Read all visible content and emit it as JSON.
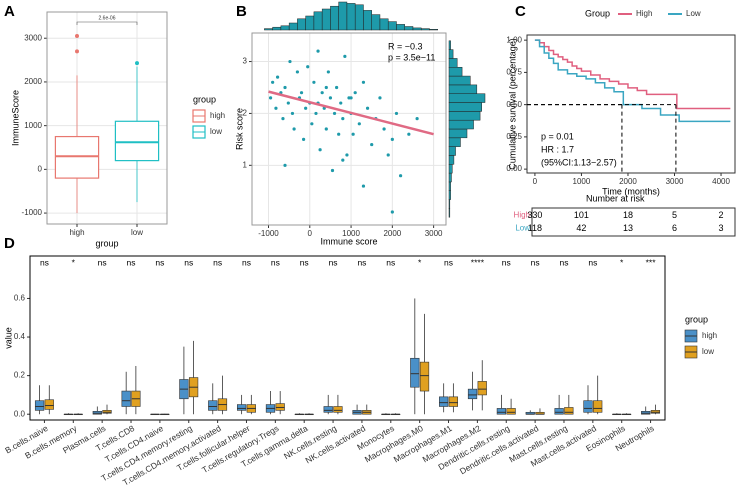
{
  "chart_data": [
    {
      "type": "box",
      "label": "A",
      "ylabel": "ImmuneScore",
      "xlabel": "group",
      "legend_title": "group",
      "filled": false,
      "grid": true,
      "annotation": "2.6e-06",
      "categories": [
        "high",
        "low"
      ],
      "ylim": [
        -1250,
        3600
      ],
      "yticks": [
        -1000,
        0,
        1000,
        2000,
        3000
      ],
      "series": [
        {
          "name": "high",
          "color": "#e8776f",
          "values": [
            [
              -1000,
              -200,
              300,
              750,
              2150
            ],
            null
          ],
          "outliers": [
            [
              2700,
              3050
            ],
            []
          ]
        },
        {
          "name": "low",
          "color": "#1fbfc4",
          "values": [
            null,
            [
              -750,
              200,
              620,
              1100,
              2350
            ]
          ],
          "outliers": [
            [],
            [
              2430
            ]
          ]
        }
      ]
    },
    {
      "type": "scatter",
      "label": "B",
      "xlabel": "Immune score",
      "ylabel": "Risk score",
      "color": "#1e9aaa",
      "grid": true,
      "annotations": [
        "R = −0.3",
        "p = 3.5e−11"
      ],
      "xlim": [
        -1400,
        3300
      ],
      "xticks": [
        -1000,
        0,
        1000,
        2000,
        3000
      ],
      "ylim": [
        -0.15,
        3.55
      ],
      "yticks": [
        1,
        2,
        3
      ],
      "x": [
        -950,
        -900,
        -820,
        -780,
        -700,
        -650,
        -600,
        -520,
        -480,
        -420,
        -380,
        -300,
        -250,
        -200,
        -150,
        -100,
        -50,
        0,
        50,
        100,
        150,
        200,
        250,
        300,
        350,
        400,
        450,
        500,
        550,
        600,
        650,
        700,
        750,
        800,
        850,
        900,
        950,
        1000,
        1050,
        1100,
        1200,
        1300,
        1400,
        1500,
        1600,
        1700,
        1800,
        1900,
        2000,
        2100,
        2200,
        2400,
        2600,
        -600,
        200,
        400,
        800,
        1000,
        2000,
        1300
      ],
      "y": [
        2.3,
        2.6,
        2.1,
        2.7,
        2.4,
        1.9,
        2.5,
        2.2,
        3.0,
        2.0,
        1.7,
        2.8,
        2.3,
        2.4,
        1.5,
        2.1,
        2.9,
        2.2,
        1.8,
        2.6,
        2.0,
        3.2,
        1.3,
        2.4,
        2.1,
        1.7,
        2.8,
        2.3,
        0.9,
        2.0,
        2.5,
        1.6,
        2.2,
        1.9,
        3.1,
        1.2,
        2.3,
        2.0,
        1.6,
        2.4,
        1.8,
        0.6,
        2.1,
        1.4,
        1.9,
        2.3,
        1.7,
        1.2,
        0.1,
        2.0,
        0.8,
        1.6,
        1.9,
        1.0,
        2.2,
        2.5,
        1.1,
        2.3,
        1.5,
        2.6
      ],
      "line": {
        "color": "#e06a84",
        "x": [
          -1000,
          3000
        ],
        "y": [
          2.42,
          1.6
        ]
      },
      "x_hist": {
        "bins": [
          -1100,
          -900,
          -700,
          -500,
          -300,
          -100,
          100,
          300,
          500,
          700,
          900,
          1100,
          1300,
          1500,
          1700,
          1900,
          2100,
          2300,
          2500,
          2700,
          2900,
          3100
        ],
        "counts": [
          2,
          4,
          6,
          10,
          16,
          20,
          26,
          30,
          34,
          40,
          38,
          36,
          28,
          22,
          16,
          12,
          8,
          5,
          3,
          2,
          1
        ]
      },
      "y_hist": {
        "bins": [
          0,
          0.17,
          0.34,
          0.51,
          0.68,
          0.85,
          1.02,
          1.19,
          1.36,
          1.53,
          1.7,
          1.87,
          2.04,
          2.21,
          2.38,
          2.55,
          2.72,
          2.89,
          3.06,
          3.23,
          3.4
        ],
        "counts": [
          1,
          1,
          2,
          2,
          3,
          4,
          6,
          8,
          14,
          22,
          30,
          38,
          40,
          44,
          34,
          26,
          16,
          10,
          5,
          2
        ]
      }
    },
    {
      "type": "line",
      "label": "C",
      "xlabel": "Time (months)",
      "ylabel": "Cumulative survival (percentage)",
      "legend_title": "Group",
      "step": true,
      "annotations": [
        "p = 0.01",
        "HR : 1.7",
        "(95%CI:1.13−2.57)"
      ],
      "xlim": [
        -170,
        4300
      ],
      "xticks": [
        0,
        1000,
        2000,
        3000,
        4000
      ],
      "ylim": [
        -0.03,
        1.04
      ],
      "yticks": [
        {
          "value": 0,
          "label": "0.00"
        },
        0.25,
        {
          "value": 0.5,
          "label": "0.50"
        },
        0.75,
        {
          "value": 1,
          "label": "1.00"
        }
      ],
      "series": [
        {
          "name": "High",
          "color": "#e05f7f",
          "x": [
            0,
            100,
            200,
            300,
            400,
            500,
            600,
            700,
            800,
            900,
            1000,
            1200,
            1400,
            1600,
            1800,
            2000,
            2200,
            2400,
            3050,
            4200
          ],
          "y": [
            1,
            0.98,
            0.95,
            0.92,
            0.89,
            0.87,
            0.85,
            0.83,
            0.8,
            0.78,
            0.76,
            0.73,
            0.7,
            0.68,
            0.66,
            0.63,
            0.61,
            0.58,
            0.47,
            0.47
          ]
        },
        {
          "name": "Low",
          "color": "#3aa6c2",
          "x": [
            0,
            100,
            200,
            300,
            400,
            500,
            700,
            900,
            1100,
            1300,
            1500,
            1700,
            1900,
            2300,
            2700,
            3100,
            4200
          ],
          "y": [
            1,
            0.95,
            0.9,
            0.86,
            0.82,
            0.77,
            0.74,
            0.72,
            0.7,
            0.67,
            0.63,
            0.6,
            0.5,
            0.47,
            0.42,
            0.37,
            0.37
          ]
        }
      ],
      "median_lines": {
        "y": 0.5,
        "x": [
          1870,
          3030
        ]
      },
      "risk_table": {
        "title": "Number at risk",
        "rows": [
          {
            "name": "High",
            "values": [
              330,
              101,
              18,
              5,
              2
            ]
          },
          {
            "name": "Low",
            "values": [
              118,
              42,
              13,
              6,
              3
            ]
          }
        ]
      }
    },
    {
      "type": "box",
      "label": "D",
      "ylabel": "value",
      "legend_title": "group",
      "filled": true,
      "grid": false,
      "categories": [
        "B.cells.naive",
        "B.cells.memory",
        "Plasma.cells",
        "T.cells.CD8",
        "T.cells.CD4.naive",
        "T.cells.CD4.memory.resting",
        "T.cells.CD4.memory.activated",
        "T.cells.follicular.helper",
        "T.cells.regulatory.Tregs",
        "T.cells.gamma.delta",
        "NK.cells.resting",
        "NK.cells.activated",
        "Monocytes",
        "Macrophages.M0",
        "Macrophages.M1",
        "Macrophages.M2",
        "Dendritic.cells.resting",
        "Dendritic.cells.activated",
        "Mast.cells.resting",
        "Mast.cells.activated",
        "Eosinophils",
        "Neutrophils"
      ],
      "annotations": [
        "ns",
        "*",
        "ns",
        "ns",
        "ns",
        "ns",
        "ns",
        "ns",
        "ns",
        "ns",
        "ns",
        "ns",
        "ns",
        "*",
        "ns",
        "****",
        "ns",
        "ns",
        "ns",
        "ns",
        "*",
        "***"
      ],
      "ylim": [
        -0.03,
        0.82
      ],
      "yticks": [
        {
          "value": 0,
          "label": "0.0"
        },
        0.2,
        0.4,
        0.6
      ],
      "series": [
        {
          "name": "high",
          "color": "#4a90c8",
          "values": [
            [
              0,
              0.02,
              0.04,
              0.07,
              0.15
            ],
            [
              0,
              0,
              0,
              0,
              0.005
            ],
            [
              0,
              0,
              0.005,
              0.015,
              0.04
            ],
            [
              0,
              0.04,
              0.07,
              0.12,
              0.22
            ],
            [
              0,
              0,
              0,
              0,
              0.002
            ],
            [
              0,
              0.08,
              0.13,
              0.18,
              0.35
            ],
            [
              0,
              0.02,
              0.04,
              0.07,
              0.16
            ],
            [
              0,
              0.02,
              0.03,
              0.05,
              0.1
            ],
            [
              0,
              0.01,
              0.03,
              0.05,
              0.12
            ],
            [
              0,
              0,
              0,
              0,
              0.005
            ],
            [
              0,
              0.01,
              0.02,
              0.04,
              0.1
            ],
            [
              0,
              0,
              0.01,
              0.02,
              0.05
            ],
            [
              0,
              0,
              0,
              0,
              0.005
            ],
            [
              0,
              0.14,
              0.21,
              0.29,
              0.6
            ],
            [
              0.01,
              0.04,
              0.06,
              0.09,
              0.16
            ],
            [
              0.02,
              0.08,
              0.1,
              0.13,
              0.22
            ],
            [
              0,
              0,
              0.01,
              0.03,
              0.1
            ],
            [
              0,
              0,
              0,
              0.01,
              0.02
            ],
            [
              0,
              0,
              0.01,
              0.03,
              0.1
            ],
            [
              0,
              0.01,
              0.03,
              0.07,
              0.15
            ],
            [
              0,
              0,
              0,
              0,
              0.005
            ],
            [
              0,
              0,
              0.005,
              0.015,
              0.04
            ]
          ]
        },
        {
          "name": "low",
          "color": "#e0a020",
          "values": [
            [
              0,
              0.025,
              0.045,
              0.075,
              0.15
            ],
            [
              0,
              0,
              0,
              0,
              0.005
            ],
            [
              0,
              0.005,
              0.01,
              0.02,
              0.05
            ],
            [
              0,
              0.04,
              0.08,
              0.12,
              0.25
            ],
            [
              0,
              0,
              0,
              0,
              0.002
            ],
            [
              0,
              0.09,
              0.14,
              0.19,
              0.38
            ],
            [
              0,
              0.02,
              0.05,
              0.08,
              0.2
            ],
            [
              0,
              0.01,
              0.03,
              0.05,
              0.1
            ],
            [
              0,
              0.02,
              0.035,
              0.055,
              0.12
            ],
            [
              0,
              0,
              0,
              0,
              0.005
            ],
            [
              0,
              0.01,
              0.02,
              0.04,
              0.1
            ],
            [
              0,
              0,
              0.01,
              0.02,
              0.05
            ],
            [
              0,
              0,
              0,
              0,
              0.005
            ],
            [
              0,
              0.12,
              0.2,
              0.27,
              0.52
            ],
            [
              0.01,
              0.04,
              0.06,
              0.09,
              0.16
            ],
            [
              0.02,
              0.1,
              0.13,
              0.17,
              0.28
            ],
            [
              0,
              0,
              0.01,
              0.03,
              0.08
            ],
            [
              0,
              0,
              0,
              0.01,
              0.03
            ],
            [
              0,
              0,
              0.01,
              0.035,
              0.1
            ],
            [
              0,
              0.01,
              0.03,
              0.07,
              0.2
            ],
            [
              0,
              0,
              0,
              0,
              0.005
            ],
            [
              0,
              0.005,
              0.01,
              0.02,
              0.05
            ]
          ]
        }
      ]
    }
  ]
}
